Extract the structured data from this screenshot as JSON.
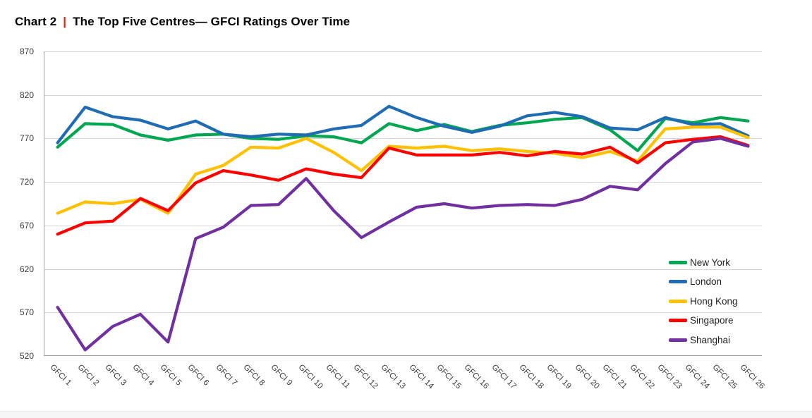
{
  "header": {
    "chart_label": "Chart 2",
    "separator": "|",
    "title": "The Top Five Centres— GFCI Ratings Over Time"
  },
  "chart_data": {
    "type": "line",
    "title": "The Top Five Centres— GFCI Ratings Over Time",
    "categories": [
      "GFCI 1",
      "GFCI 2",
      "GFCI 3",
      "GFCI 4",
      "GFCI 5",
      "GFCI 6",
      "GFCI 7",
      "GFCI 8",
      "GFCI 9",
      "GFCI 10",
      "GFCI 11",
      "GFCI 12",
      "GFCI 13",
      "GFCI 14",
      "GFCI 15",
      "GFCI 16",
      "GFCI 17",
      "GFCI 18",
      "GFCI 19",
      "GFCI 20",
      "GFCI 21",
      "GFCI 22",
      "GFCI 23",
      "GFCI 24",
      "GFCI 25",
      "GFCI 26"
    ],
    "series": [
      {
        "name": "New York",
        "color": "#00A650",
        "values": [
          760,
          787,
          786,
          774,
          768,
          774,
          775,
          770,
          769,
          773,
          772,
          765,
          787,
          779,
          786,
          778,
          785,
          788,
          792,
          794,
          780,
          756,
          793,
          788,
          794,
          790
        ]
      },
      {
        "name": "London",
        "color": "#1F6CB5",
        "values": [
          765,
          806,
          795,
          791,
          781,
          790,
          775,
          772,
          775,
          774,
          781,
          785,
          807,
          794,
          784,
          777,
          784,
          796,
          800,
          795,
          782,
          780,
          794,
          786,
          787,
          773
        ]
      },
      {
        "name": "Hong Kong",
        "color": "#FFC000",
        "values": [
          684,
          697,
          695,
          700,
          684,
          729,
          739,
          760,
          759,
          770,
          754,
          733,
          761,
          759,
          761,
          756,
          758,
          755,
          753,
          748,
          755,
          744,
          781,
          783,
          783,
          771
        ]
      },
      {
        "name": "Singapore",
        "color": "#FF0000",
        "values": [
          660,
          673,
          675,
          701,
          687,
          719,
          733,
          728,
          722,
          735,
          729,
          725,
          759,
          751,
          751,
          751,
          754,
          750,
          755,
          752,
          760,
          742,
          765,
          769,
          772,
          762
        ]
      },
      {
        "name": "Shanghai",
        "color": "#7030A0",
        "values": [
          576,
          527,
          554,
          568,
          536,
          655,
          668,
          693,
          694,
          724,
          687,
          656,
          674,
          691,
          695,
          690,
          693,
          694,
          693,
          700,
          715,
          711,
          741,
          766,
          770,
          761
        ]
      }
    ],
    "ylim": [
      520,
      870
    ],
    "ytick_interval": 50,
    "yticks": [
      520,
      570,
      620,
      670,
      720,
      770,
      820,
      870
    ],
    "grid": true,
    "legend_position": "inside-right",
    "colors": {
      "gridline": "#D4D4D4",
      "axis": "#A0A0A0",
      "tick_label": "#3B3B3B",
      "title_separator": "#E32119"
    }
  }
}
